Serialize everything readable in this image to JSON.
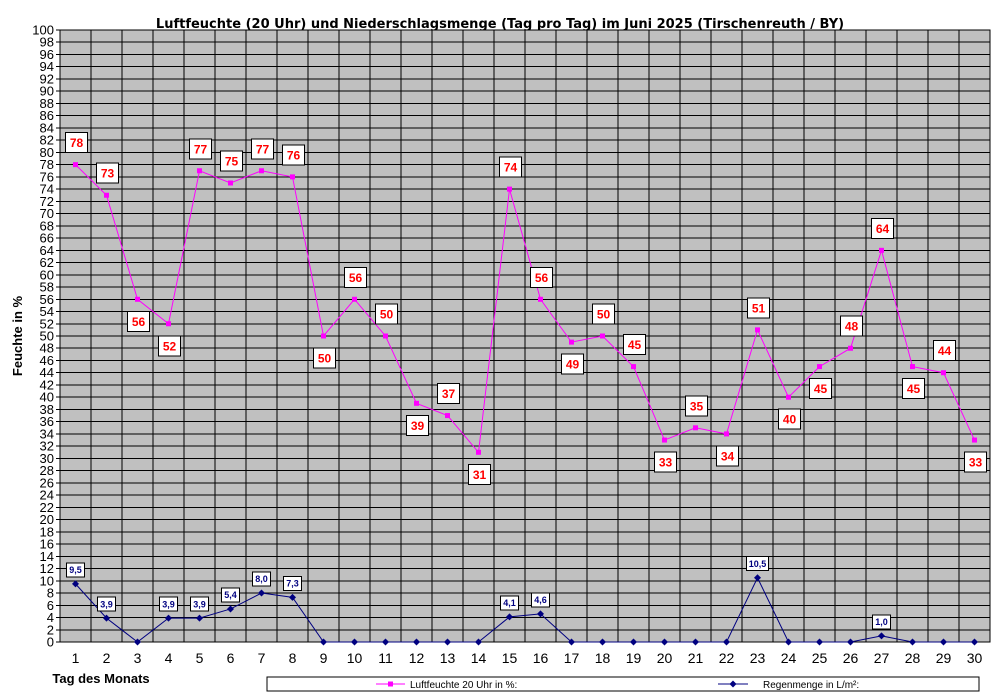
{
  "chart_data": {
    "type": "line",
    "title": "Luftfeuchte (20 Uhr) und Niederschlagsmenge (Tag pro Tag) im Juni 2025 (Tirschenreuth / BY)",
    "xlabel": "Tag des Monats",
    "ylabel": "Feuchte in %",
    "ylim": [
      0,
      100
    ],
    "ytick_step": 2,
    "grid": true,
    "legend_position": "bottom-right",
    "categories": [
      "1",
      "2",
      "3",
      "4",
      "5",
      "6",
      "7",
      "8",
      "9",
      "10",
      "11",
      "12",
      "13",
      "14",
      "15",
      "16",
      "17",
      "18",
      "19",
      "20",
      "21",
      "22",
      "23",
      "24",
      "25",
      "26",
      "27",
      "28",
      "29",
      "30"
    ],
    "series": [
      {
        "name": "Luftfeuchte 20 Uhr in %:",
        "color": "#ff00ff",
        "label_color": "#ff0000",
        "values": [
          78,
          73,
          56,
          52,
          77,
          75,
          77,
          76,
          50,
          56,
          50,
          39,
          37,
          31,
          74,
          56,
          49,
          50,
          45,
          33,
          35,
          34,
          51,
          40,
          45,
          48,
          64,
          45,
          44,
          33
        ],
        "labels": [
          "78",
          "73",
          "56",
          "52",
          "77",
          "75",
          "77",
          "76",
          "50",
          "56",
          "50",
          "39",
          "37",
          "31",
          "74",
          "56",
          "49",
          "50",
          "45",
          "33",
          "35",
          "34",
          "51",
          "40",
          "45",
          "48",
          "64",
          "45",
          "44",
          "33"
        ],
        "label_side": [
          "above",
          "above",
          "below",
          "below",
          "above",
          "above",
          "above",
          "above",
          "below",
          "above",
          "above",
          "below",
          "above",
          "below",
          "above",
          "above",
          "below",
          "above",
          "above",
          "below",
          "above",
          "below",
          "above",
          "below",
          "below",
          "above",
          "above",
          "below",
          "above",
          "below"
        ]
      },
      {
        "name": "Regenmenge in L/m²:",
        "color": "#000080",
        "label_color": "#000080",
        "values": [
          9.5,
          3.9,
          0,
          3.9,
          3.9,
          5.4,
          8.0,
          7.3,
          0,
          0,
          0,
          0,
          0,
          0,
          4.1,
          4.6,
          0,
          0,
          0,
          0,
          0,
          0,
          10.5,
          0,
          0,
          0,
          1.0,
          0,
          0,
          0
        ],
        "labels": [
          "9,5",
          "3,9",
          "",
          "3,9",
          "3,9",
          "5,4",
          "8,0",
          "7,3",
          "",
          "",
          "",
          "",
          "",
          "",
          "4,1",
          "4,6",
          "",
          "",
          "",
          "",
          "",
          "",
          "10,5",
          "",
          "",
          "",
          "1,0",
          "",
          "",
          ""
        ]
      }
    ]
  }
}
